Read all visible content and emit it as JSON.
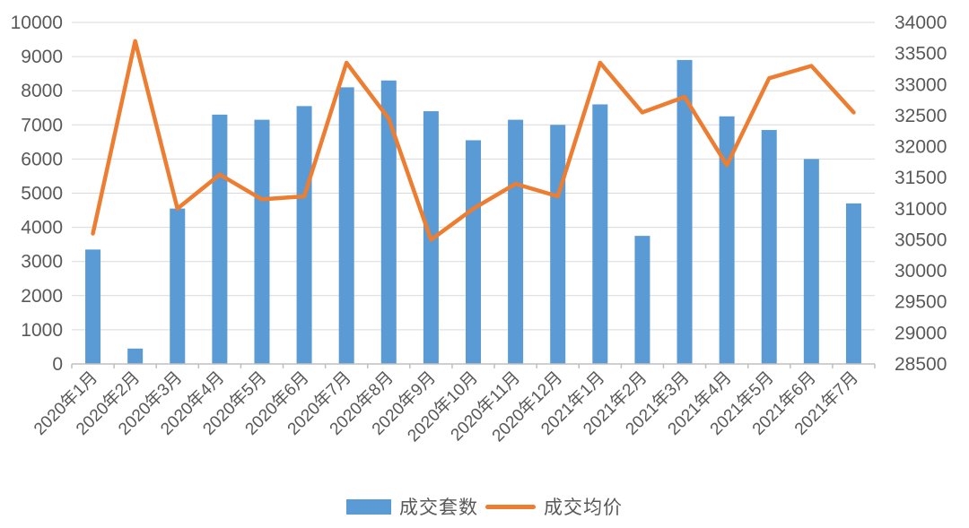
{
  "chart_data": {
    "type": "bar",
    "subtype": "combo-bar-line-dual-axis",
    "title": "",
    "categories": [
      "2020年1月",
      "2020年2月",
      "2020年3月",
      "2020年4月",
      "2020年5月",
      "2020年6月",
      "2020年7月",
      "2020年8月",
      "2020年9月",
      "2020年10月",
      "2020年11月",
      "2020年12月",
      "2021年1月",
      "2021年2月",
      "2021年3月",
      "2021年4月",
      "2021年5月",
      "2021年6月",
      "2021年7月"
    ],
    "series": [
      {
        "name": "成交套数",
        "type": "bar",
        "axis": "left",
        "color": "#5B9BD5",
        "values": [
          3350,
          450,
          4550,
          7300,
          7150,
          7550,
          8100,
          8300,
          7400,
          6550,
          7150,
          7000,
          7600,
          3750,
          8900,
          7250,
          6850,
          6000,
          4700
        ]
      },
      {
        "name": "成交均价",
        "type": "line",
        "axis": "right",
        "color": "#ED7D31",
        "values": [
          30600,
          33700,
          31000,
          31550,
          31150,
          31200,
          33350,
          32450,
          30500,
          31000,
          31400,
          31200,
          33350,
          32550,
          32800,
          31700,
          33100,
          33300,
          32550
        ]
      }
    ],
    "left_axis": {
      "min": 0,
      "max": 10000,
      "tick_interval": 1000,
      "tick_labels": [
        "0",
        "1000",
        "2000",
        "3000",
        "4000",
        "5000",
        "6000",
        "7000",
        "8000",
        "9000",
        "10000"
      ]
    },
    "right_axis": {
      "min": 28500,
      "max": 34000,
      "tick_interval": 500,
      "tick_labels": [
        "28500",
        "29000",
        "29500",
        "30000",
        "30500",
        "31000",
        "31500",
        "32000",
        "32500",
        "33000",
        "33500",
        "34000"
      ]
    },
    "grid": true,
    "legend_position": "bottom",
    "x_label_rotation_deg": 45
  },
  "legend": {
    "bar_label": "成交套数",
    "line_label": "成交均价"
  },
  "colors": {
    "bar": "#5B9BD5",
    "line": "#ED7D31",
    "gridline": "#D9D9D9",
    "axis_line": "#BFBFBF",
    "text": "#595959",
    "background": "#FFFFFF"
  }
}
